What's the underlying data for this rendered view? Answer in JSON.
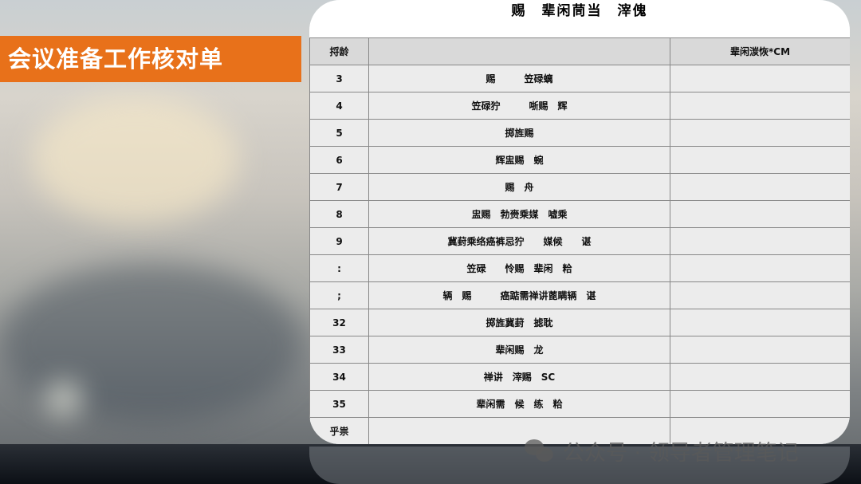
{
  "slide_title": "会议准备工作核对单",
  "panel": {
    "title": "赐　辈闲茼当　滓傀",
    "headers": [
      "捋龄",
      "",
      "辈闲湠恢*CM"
    ],
    "rows": [
      {
        "no": "3",
        "item": "赐　　　笠碌螭"
      },
      {
        "no": "4",
        "item": "笠碌狞　　　哳赐　辉"
      },
      {
        "no": "5",
        "item": "掷旌赐"
      },
      {
        "no": "6",
        "item": "辉盅赐　蜿"
      },
      {
        "no": "7",
        "item": "赐　舟"
      },
      {
        "no": "8",
        "item": "盅赐　勃赍乘媒　嘘乘"
      },
      {
        "no": "9",
        "item": "冀葑乘络癌裤忌狞　　媒候　　谌"
      },
      {
        "no": ":",
        "item": "笠碌　　怜赐　辈闲　粭"
      },
      {
        "no": ";",
        "item": "辆　赐　　　癌踮需禅讲蓖瞒辆　谌"
      },
      {
        "no": "32",
        "item": "掷旌冀葑　摅耽"
      },
      {
        "no": "33",
        "item": "辈闲赐　龙"
      },
      {
        "no": "34",
        "item": "禅讲　滓赐　SC"
      },
      {
        "no": "35",
        "item": "辈闲需　候　练　粭"
      },
      {
        "no": "乎祟",
        "item": ""
      }
    ]
  },
  "watermark": "公众号 · 领导者管理笔记",
  "colors": {
    "accent": "#e8711a"
  }
}
